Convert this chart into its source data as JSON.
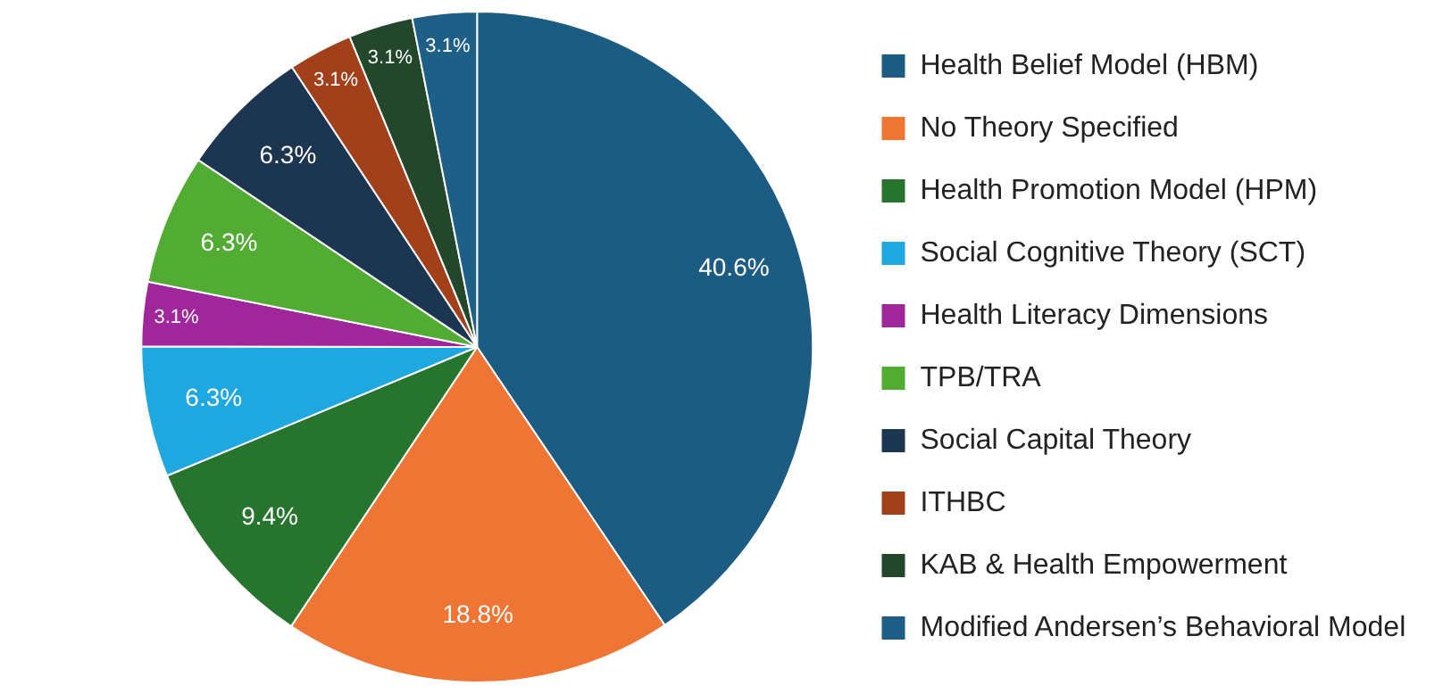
{
  "chart_data": {
    "type": "pie",
    "categories": [
      "Health Belief Model (HBM)",
      "No Theory Specified",
      "Health Promotion Model (HPM)",
      "Social Cognitive Theory (SCT)",
      "Health Literacy Dimensions",
      "TPB/TRA",
      "Social Capital Theory",
      "ITHBC",
      "KAB & Health Empowerment",
      "Modified Andersen’s Behavioral Model"
    ],
    "values": [
      40.6,
      18.8,
      9.4,
      6.3,
      3.1,
      6.3,
      6.3,
      3.1,
      3.1,
      3.1
    ],
    "colors": [
      "#1c5c82",
      "#ee7533",
      "#27742e",
      "#1fa8e0",
      "#a0269c",
      "#52ac33",
      "#1c3550",
      "#a2401c",
      "#22472a",
      "#1d5f86"
    ],
    "value_labels": [
      "40.6%",
      "18.8%",
      "9.4%",
      "6.3%",
      "3.1%",
      "6.3%",
      "6.3%",
      "3.1%",
      "3.1%",
      "3.1%"
    ],
    "legend": "right"
  }
}
